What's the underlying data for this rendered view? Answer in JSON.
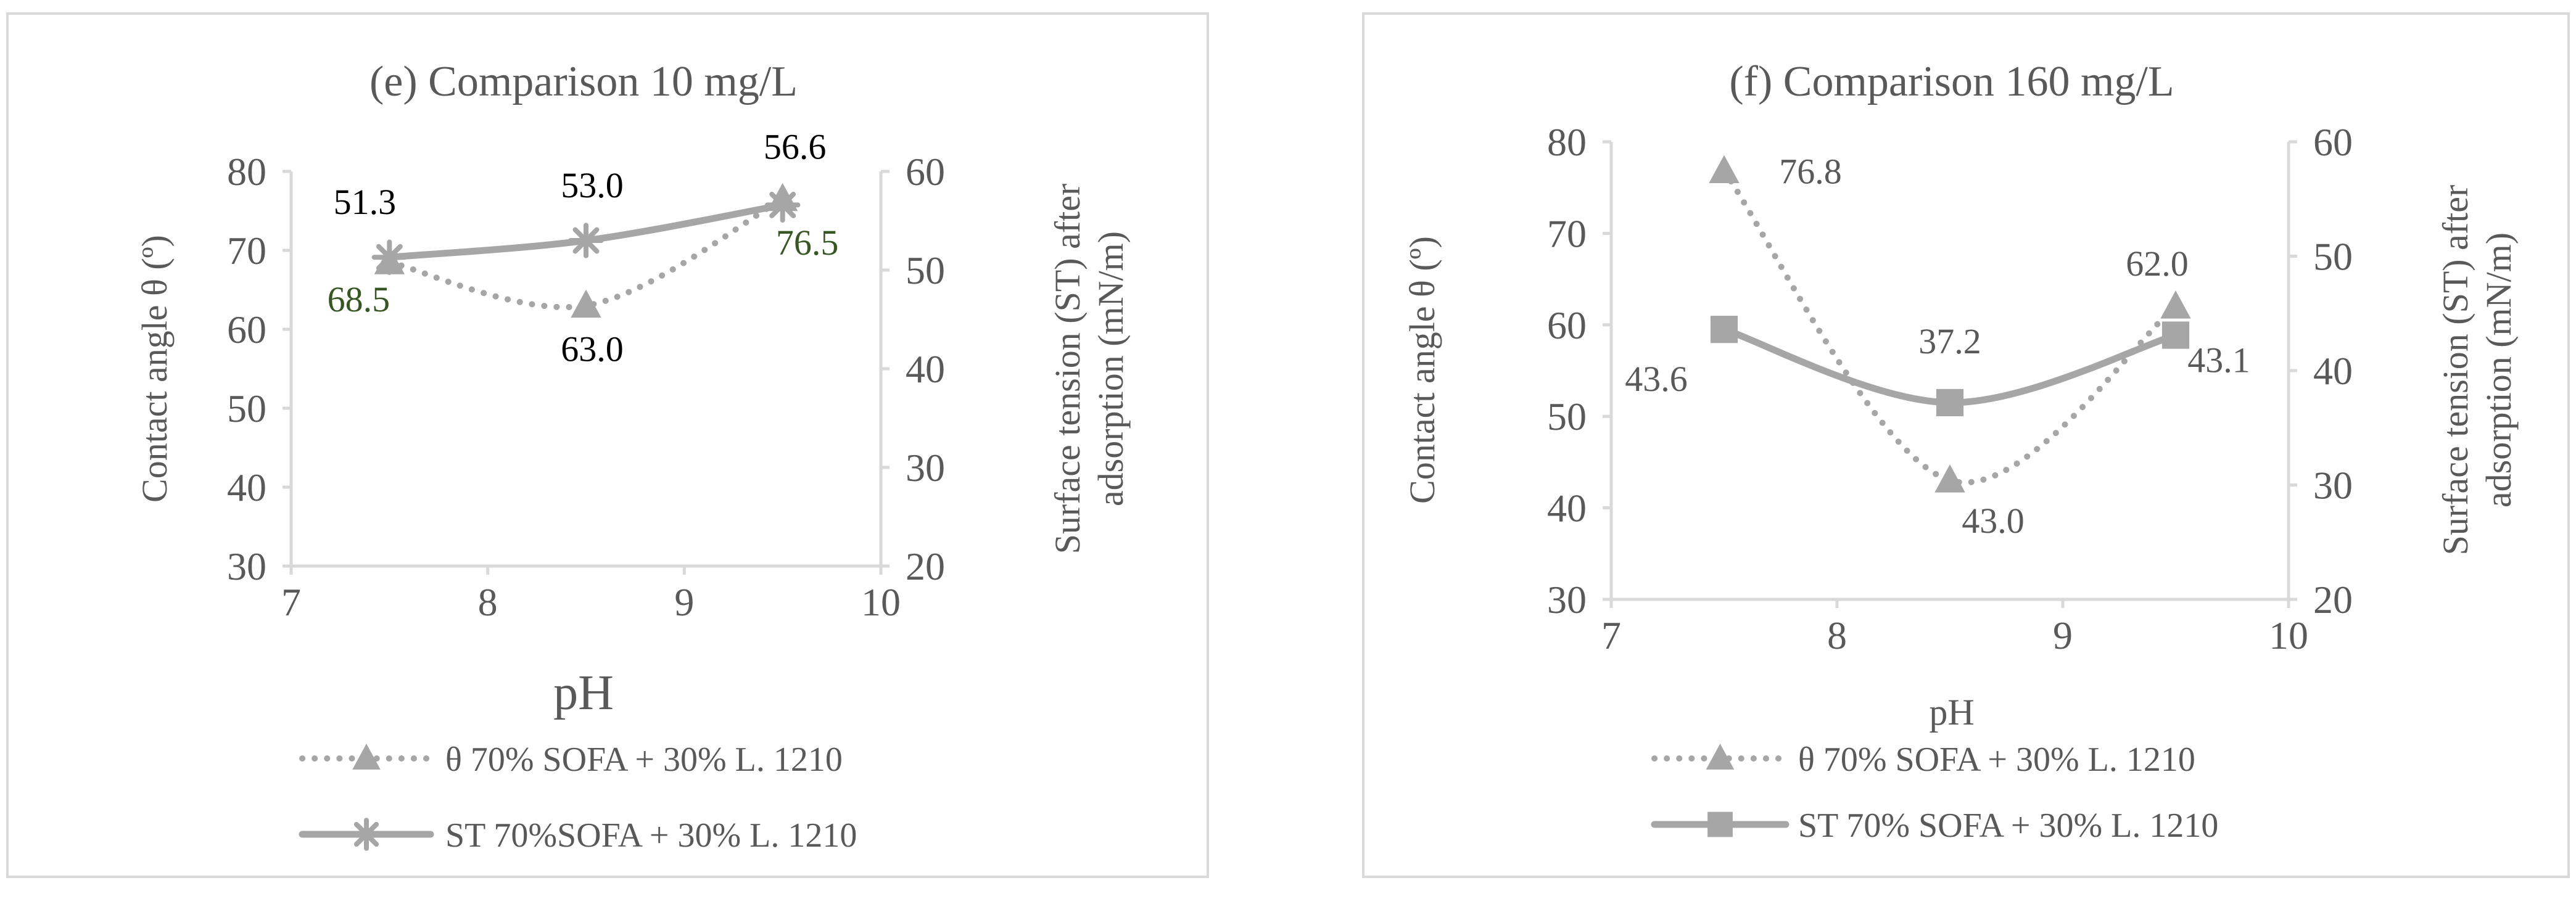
{
  "chart_data": [
    {
      "type": "line",
      "title": "(e) Comparison 10 mg/L",
      "xlabel": "pH",
      "ylabel": "Contact angle θ (º)",
      "y2label": [
        "Surface tension (ST) after",
        "adsorption (mN/m)"
      ],
      "xlim": [
        7,
        10
      ],
      "ylim": [
        30,
        80
      ],
      "y2lim": [
        20,
        60
      ],
      "xticks": [
        "7",
        "8",
        "9",
        "10"
      ],
      "yticks": [
        "30",
        "40",
        "50",
        "60",
        "70",
        "80"
      ],
      "y2ticks": [
        "20",
        "30",
        "40",
        "50",
        "60"
      ],
      "series": [
        {
          "name": "θ 70% SOFA + 30% L. 1210",
          "axis": "left",
          "style": "dotted",
          "marker": "triangle",
          "color": "#a6a6a6",
          "x": [
            7.5,
            8.5,
            9.5
          ],
          "values": [
            68.5,
            63.0,
            76.5
          ],
          "labels": [
            "68.5",
            "63.0",
            "76.5"
          ],
          "label_colors": [
            "#375623",
            "#000000",
            "#375623"
          ]
        },
        {
          "name": "ST 70%SOFA + 30% L. 1210",
          "axis": "right",
          "style": "solid",
          "marker": "star",
          "color": "#a6a6a6",
          "x": [
            7.5,
            8.5,
            9.5
          ],
          "values": [
            51.3,
            53.0,
            56.6
          ],
          "labels": [
            "51.3",
            "53.0",
            "56.6"
          ],
          "label_colors": [
            "#000000",
            "#000000",
            "#000000"
          ]
        }
      ],
      "legend": "bottom",
      "grid": false
    },
    {
      "type": "line",
      "title": "(f) Comparison 160 mg/L",
      "xlabel": "pH",
      "ylabel": "Contact angle θ (º)",
      "y2label": [
        "Surface tension (ST) after",
        "adsorption (mN/m)"
      ],
      "xlim": [
        7,
        10
      ],
      "ylim": [
        30,
        80
      ],
      "y2lim": [
        20,
        60
      ],
      "xticks": [
        "7",
        "8",
        "9",
        "10"
      ],
      "yticks": [
        "30",
        "40",
        "50",
        "60",
        "70",
        "80"
      ],
      "y2ticks": [
        "20",
        "30",
        "40",
        "50",
        "60"
      ],
      "series": [
        {
          "name": "θ 70% SOFA + 30% L. 1210",
          "axis": "left",
          "style": "dotted",
          "marker": "triangle",
          "color": "#a6a6a6",
          "x": [
            7.5,
            8.5,
            9.5
          ],
          "values": [
            76.8,
            43.0,
            62.0
          ],
          "labels": [
            "76.8",
            "43.0",
            "62.0"
          ],
          "label_colors": [
            "#595959",
            "#595959",
            "#595959"
          ]
        },
        {
          "name": "ST 70% SOFA + 30% L. 1210",
          "axis": "right",
          "style": "solid",
          "marker": "square",
          "color": "#a6a6a6",
          "x": [
            7.5,
            8.5,
            9.5
          ],
          "values": [
            43.6,
            37.2,
            43.1
          ],
          "labels": [
            "43.6",
            "37.2",
            "43.1"
          ],
          "label_colors": [
            "#595959",
            "#595959",
            "#595959"
          ]
        }
      ],
      "legend": "bottom",
      "grid": false
    }
  ]
}
